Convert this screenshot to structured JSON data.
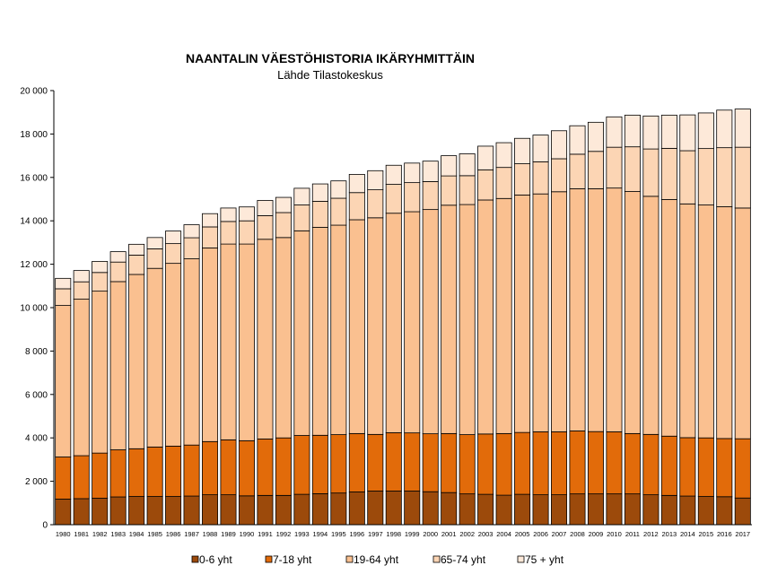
{
  "chart_data": {
    "type": "bar",
    "stacked": true,
    "title": "NAANTALIN  VÄESTÖHISTORIA IKÄRYHMITTÄIN",
    "subtitle": "Lähde Tilastokeskus",
    "xlabel": "",
    "ylabel": "",
    "ylim": [
      0,
      20000
    ],
    "yticks": [
      0,
      2000,
      4000,
      6000,
      8000,
      10000,
      12000,
      14000,
      16000,
      18000,
      20000
    ],
    "ytick_labels": [
      "0",
      "2 000",
      "4 000",
      "6 000",
      "8 000",
      "10 000",
      "12 000",
      "14 000",
      "16 000",
      "18 000",
      "20 000"
    ],
    "legend_position": "bottom",
    "grid": false,
    "categories": [
      "1980",
      "1981",
      "1982",
      "1983",
      "1984",
      "1985",
      "1986",
      "1987",
      "1988",
      "1989",
      "1990",
      "1991",
      "1992",
      "1993",
      "1994",
      "1995",
      "1996",
      "1997",
      "1998",
      "1999",
      "2000",
      "2001",
      "2002",
      "2003",
      "2004",
      "2005",
      "2006",
      "2007",
      "2008",
      "2009",
      "2010",
      "2011",
      "2012",
      "2013",
      "2014",
      "2015",
      "2016",
      "2017"
    ],
    "series": [
      {
        "name": "0-6 yht",
        "color": "#9C4A0B",
        "values": [
          1180,
          1200,
          1220,
          1280,
          1300,
          1300,
          1300,
          1320,
          1380,
          1380,
          1330,
          1350,
          1350,
          1400,
          1430,
          1460,
          1510,
          1550,
          1550,
          1550,
          1520,
          1480,
          1420,
          1400,
          1360,
          1400,
          1380,
          1380,
          1420,
          1420,
          1420,
          1420,
          1380,
          1350,
          1320,
          1300,
          1290,
          1230
        ]
      },
      {
        "name": "7-18 yht",
        "color": "#E26B0A",
        "values": [
          1940,
          1980,
          2080,
          2170,
          2200,
          2280,
          2320,
          2350,
          2450,
          2530,
          2540,
          2600,
          2650,
          2710,
          2690,
          2690,
          2690,
          2610,
          2690,
          2680,
          2670,
          2720,
          2730,
          2780,
          2840,
          2850,
          2900,
          2900,
          2900,
          2870,
          2860,
          2780,
          2780,
          2730,
          2690,
          2700,
          2680,
          2730
        ]
      },
      {
        "name": "19-64 yht",
        "color": "#FAC090",
        "values": [
          6980,
          7210,
          7460,
          7750,
          8030,
          8230,
          8420,
          8580,
          8920,
          9020,
          9060,
          9200,
          9230,
          9430,
          9580,
          9650,
          9850,
          9980,
          10110,
          10190,
          10330,
          10520,
          10600,
          10780,
          10830,
          10940,
          10960,
          11060,
          11160,
          11190,
          11230,
          11150,
          10970,
          10900,
          10770,
          10730,
          10680,
          10630
        ]
      },
      {
        "name": "65-74 yht",
        "color": "#FCD5B4",
        "values": [
          770,
          800,
          860,
          900,
          890,
          900,
          910,
          970,
          970,
          1040,
          1070,
          1090,
          1150,
          1190,
          1200,
          1240,
          1250,
          1290,
          1330,
          1340,
          1290,
          1350,
          1330,
          1390,
          1430,
          1440,
          1480,
          1520,
          1590,
          1720,
          1880,
          2060,
          2180,
          2360,
          2450,
          2600,
          2720,
          2800
        ]
      },
      {
        "name": "75 + yht",
        "color": "#FDE9D9",
        "values": [
          480,
          520,
          510,
          480,
          500,
          520,
          580,
          600,
          610,
          620,
          640,
          700,
          700,
          770,
          800,
          800,
          840,
          880,
          880,
          900,
          940,
          930,
          1010,
          1090,
          1140,
          1170,
          1230,
          1290,
          1310,
          1340,
          1400,
          1460,
          1520,
          1530,
          1650,
          1640,
          1730,
          1760
        ]
      }
    ]
  }
}
